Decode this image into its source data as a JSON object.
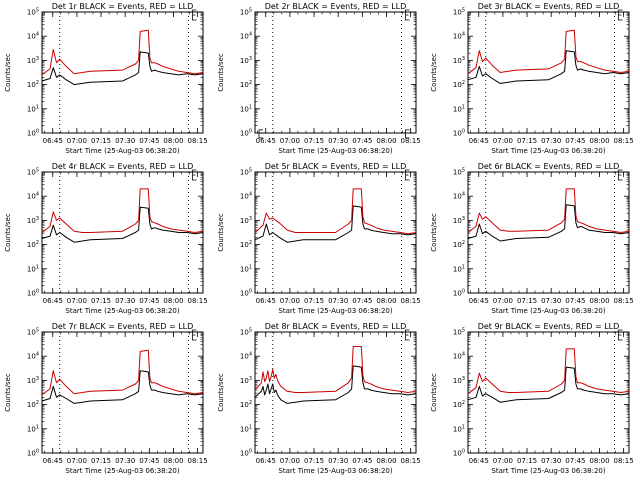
{
  "figure": {
    "start_time_label": "Start Time (25-Aug-03 06:38:20)",
    "y_axis_label": "Counts/sec"
  },
  "chart_data": {
    "type": "line",
    "x_tick_labels": [
      "06:45",
      "07:00",
      "07:15",
      "07:30",
      "07:45",
      "08:00",
      "08:15"
    ],
    "y_tick_labels": [
      "10^0",
      "10^1",
      "10^2",
      "10^3",
      "10^4",
      "10^5"
    ],
    "ylim_log10": [
      0,
      5
    ],
    "xlim_minutes": [
      0,
      100
    ],
    "vertical_marker_minutes": [
      11,
      91
    ],
    "marker_labels": [
      "E",
      "L"
    ],
    "panels": [
      {
        "title": "Det 1r BLACK = Events, RED = LLD",
        "series": [
          {
            "name": "Events",
            "color": "#000000",
            "x": [
              0,
              5,
              7,
              9,
              11,
              15,
              20,
              25,
              30,
              50,
              58,
              60,
              61,
              66,
              67,
              68,
              70,
              72,
              75,
              80,
              85,
              90,
              95,
              100
            ],
            "y": [
              2.15,
              2.25,
              2.7,
              2.3,
              2.4,
              2.2,
              2.0,
              2.05,
              2.1,
              2.15,
              2.4,
              2.5,
              3.35,
              3.3,
              2.75,
              2.55,
              2.6,
              2.55,
              2.5,
              2.45,
              2.4,
              2.45,
              2.4,
              2.45
            ]
          },
          {
            "name": "LLD",
            "color": "#cc0000",
            "x": [
              0,
              5,
              7,
              9,
              11,
              15,
              20,
              25,
              30,
              50,
              58,
              60,
              61,
              66,
              67,
              68,
              70,
              72,
              75,
              80,
              85,
              90,
              95,
              100
            ],
            "y": [
              2.4,
              2.65,
              3.45,
              2.9,
              3.05,
              2.75,
              2.45,
              2.5,
              2.55,
              2.6,
              2.85,
              3.0,
              4.2,
              4.25,
              3.1,
              2.9,
              2.9,
              2.85,
              2.75,
              2.65,
              2.55,
              2.5,
              2.45,
              2.5
            ]
          }
        ]
      },
      {
        "title": "Det 2r BLACK = Events, RED = LLD",
        "series": []
      },
      {
        "title": "Det 3r BLACK = Events, RED = LLD",
        "series": [
          {
            "name": "Events",
            "color": "#000000",
            "x": [
              0,
              5,
              7,
              9,
              11,
              15,
              20,
              25,
              30,
              50,
              58,
              60,
              61,
              66,
              67,
              68,
              70,
              72,
              75,
              80,
              85,
              90,
              95,
              100
            ],
            "y": [
              2.2,
              2.3,
              2.75,
              2.35,
              2.45,
              2.25,
              2.05,
              2.1,
              2.15,
              2.2,
              2.45,
              2.55,
              3.4,
              3.35,
              2.8,
              2.6,
              2.65,
              2.6,
              2.55,
              2.5,
              2.45,
              2.5,
              2.45,
              2.5
            ]
          },
          {
            "name": "LLD",
            "color": "#cc0000",
            "x": [
              0,
              5,
              7,
              9,
              11,
              15,
              20,
              25,
              30,
              50,
              58,
              60,
              61,
              66,
              67,
              68,
              70,
              72,
              75,
              80,
              85,
              90,
              95,
              100
            ],
            "y": [
              2.45,
              2.7,
              3.4,
              2.95,
              3.1,
              2.8,
              2.5,
              2.55,
              2.6,
              2.65,
              2.9,
              3.05,
              4.2,
              4.25,
              3.15,
              2.95,
              2.95,
              2.9,
              2.8,
              2.7,
              2.6,
              2.55,
              2.5,
              2.55
            ]
          }
        ]
      },
      {
        "title": "Det 4r BLACK = Events, RED = LLD",
        "series": [
          {
            "name": "Events",
            "color": "#000000",
            "x": [
              0,
              5,
              7,
              9,
              11,
              15,
              20,
              25,
              30,
              50,
              58,
              60,
              61,
              66,
              67,
              68,
              70,
              72,
              75,
              80,
              85,
              90,
              95,
              100
            ],
            "y": [
              2.25,
              2.35,
              2.8,
              2.4,
              2.5,
              2.3,
              2.1,
              2.15,
              2.2,
              2.25,
              2.5,
              2.6,
              3.55,
              3.5,
              2.85,
              2.65,
              2.7,
              2.65,
              2.6,
              2.55,
              2.5,
              2.5,
              2.45,
              2.5
            ]
          },
          {
            "name": "LLD",
            "color": "#cc0000",
            "x": [
              0,
              5,
              7,
              9,
              11,
              15,
              20,
              25,
              30,
              50,
              58,
              60,
              61,
              66,
              67,
              68,
              70,
              72,
              75,
              80,
              85,
              90,
              95,
              100
            ],
            "y": [
              2.5,
              2.75,
              3.35,
              3.0,
              3.1,
              2.85,
              2.55,
              2.5,
              2.5,
              2.55,
              2.85,
              3.0,
              4.3,
              4.3,
              3.15,
              2.95,
              2.9,
              2.85,
              2.75,
              2.65,
              2.6,
              2.55,
              2.5,
              2.55
            ]
          }
        ]
      },
      {
        "title": "Det 5r BLACK = Events, RED = LLD",
        "series": [
          {
            "name": "Events",
            "color": "#000000",
            "x": [
              0,
              5,
              7,
              9,
              11,
              15,
              20,
              25,
              30,
              50,
              58,
              60,
              61,
              66,
              67,
              68,
              70,
              72,
              75,
              80,
              85,
              90,
              95,
              100
            ],
            "y": [
              2.2,
              2.35,
              2.85,
              2.4,
              2.5,
              2.3,
              2.1,
              2.15,
              2.2,
              2.2,
              2.5,
              2.6,
              3.6,
              3.55,
              2.85,
              2.65,
              2.65,
              2.6,
              2.55,
              2.5,
              2.45,
              2.45,
              2.4,
              2.45
            ]
          },
          {
            "name": "LLD",
            "color": "#cc0000",
            "x": [
              0,
              5,
              7,
              9,
              11,
              15,
              20,
              25,
              30,
              50,
              58,
              60,
              61,
              66,
              67,
              68,
              70,
              72,
              75,
              80,
              85,
              90,
              95,
              100
            ],
            "y": [
              2.5,
              2.8,
              3.3,
              3.05,
              3.1,
              2.9,
              2.6,
              2.5,
              2.5,
              2.5,
              2.85,
              3.0,
              4.3,
              4.3,
              3.15,
              2.9,
              2.85,
              2.8,
              2.7,
              2.6,
              2.55,
              2.5,
              2.45,
              2.5
            ]
          }
        ]
      },
      {
        "title": "Det 6r BLACK = Events, RED = LLD",
        "series": [
          {
            "name": "Events",
            "color": "#000000",
            "x": [
              0,
              5,
              7,
              9,
              11,
              15,
              20,
              25,
              30,
              50,
              58,
              60,
              61,
              66,
              67,
              68,
              70,
              72,
              75,
              80,
              85,
              90,
              95,
              100
            ],
            "y": [
              2.25,
              2.35,
              2.85,
              2.45,
              2.55,
              2.35,
              2.15,
              2.2,
              2.25,
              2.3,
              2.55,
              2.65,
              3.65,
              3.6,
              2.9,
              2.7,
              2.75,
              2.7,
              2.6,
              2.55,
              2.5,
              2.5,
              2.45,
              2.5
            ]
          },
          {
            "name": "LLD",
            "color": "#cc0000",
            "x": [
              0,
              5,
              7,
              9,
              11,
              15,
              20,
              25,
              30,
              50,
              58,
              60,
              61,
              66,
              67,
              68,
              70,
              72,
              75,
              80,
              85,
              90,
              95,
              100
            ],
            "y": [
              2.5,
              2.75,
              3.3,
              3.05,
              3.15,
              2.9,
              2.6,
              2.55,
              2.55,
              2.6,
              2.9,
              3.05,
              4.3,
              4.3,
              3.2,
              2.95,
              2.9,
              2.85,
              2.75,
              2.65,
              2.6,
              2.55,
              2.5,
              2.55
            ]
          }
        ]
      },
      {
        "title": "Det 7r BLACK = Events, RED = LLD",
        "series": [
          {
            "name": "Events",
            "color": "#000000",
            "x": [
              0,
              5,
              7,
              9,
              11,
              15,
              20,
              25,
              30,
              50,
              58,
              60,
              61,
              66,
              67,
              68,
              70,
              72,
              75,
              80,
              85,
              90,
              95,
              100
            ],
            "y": [
              2.15,
              2.25,
              2.75,
              2.3,
              2.4,
              2.25,
              2.05,
              2.1,
              2.15,
              2.2,
              2.45,
              2.55,
              3.4,
              3.35,
              2.8,
              2.6,
              2.6,
              2.55,
              2.5,
              2.45,
              2.4,
              2.45,
              2.4,
              2.45
            ]
          },
          {
            "name": "LLD",
            "color": "#cc0000",
            "x": [
              0,
              5,
              7,
              9,
              11,
              15,
              20,
              25,
              30,
              50,
              58,
              60,
              61,
              66,
              67,
              68,
              70,
              72,
              75,
              80,
              85,
              90,
              95,
              100
            ],
            "y": [
              2.4,
              2.65,
              3.4,
              2.9,
              3.05,
              2.75,
              2.45,
              2.5,
              2.55,
              2.6,
              2.85,
              3.0,
              4.2,
              4.25,
              3.1,
              2.9,
              2.9,
              2.85,
              2.75,
              2.65,
              2.55,
              2.5,
              2.45,
              2.5
            ]
          }
        ]
      },
      {
        "title": "Det 8r BLACK = Events, RED = LLD",
        "series": [
          {
            "name": "Events",
            "color": "#000000",
            "x": [
              0,
              4,
              5,
              6,
              7,
              8,
              9,
              10,
              11,
              12,
              13,
              14,
              16,
              20,
              25,
              30,
              50,
              58,
              60,
              61,
              66,
              67,
              68,
              70,
              72,
              75,
              80,
              85,
              90,
              95,
              100
            ],
            "y": [
              2.3,
              2.55,
              2.75,
              2.4,
              2.6,
              2.85,
              2.45,
              2.65,
              2.85,
              2.5,
              2.6,
              2.4,
              2.2,
              2.05,
              2.1,
              2.15,
              2.2,
              2.5,
              2.65,
              3.6,
              3.55,
              2.9,
              2.65,
              2.65,
              2.6,
              2.55,
              2.5,
              2.45,
              2.45,
              2.4,
              2.45
            ]
          },
          {
            "name": "LLD",
            "color": "#cc0000",
            "x": [
              0,
              4,
              5,
              6,
              7,
              8,
              9,
              10,
              11,
              12,
              13,
              14,
              16,
              20,
              25,
              30,
              50,
              58,
              60,
              61,
              66,
              67,
              68,
              70,
              72,
              75,
              80,
              85,
              90,
              95,
              100
            ],
            "y": [
              2.6,
              2.9,
              3.35,
              2.95,
              3.1,
              3.4,
              2.95,
              3.15,
              3.45,
              3.1,
              3.25,
              3.0,
              2.75,
              2.55,
              2.5,
              2.5,
              2.55,
              2.9,
              3.1,
              4.4,
              4.4,
              3.2,
              2.95,
              2.9,
              2.85,
              2.75,
              2.65,
              2.6,
              2.55,
              2.5,
              2.55
            ]
          }
        ]
      },
      {
        "title": "Det 9r BLACK = Events, RED = LLD",
        "series": [
          {
            "name": "Events",
            "color": "#000000",
            "x": [
              0,
              5,
              7,
              9,
              11,
              15,
              20,
              25,
              30,
              50,
              58,
              60,
              61,
              66,
              67,
              68,
              70,
              72,
              75,
              80,
              85,
              90,
              95,
              100
            ],
            "y": [
              2.2,
              2.3,
              2.75,
              2.35,
              2.45,
              2.3,
              2.1,
              2.15,
              2.2,
              2.25,
              2.5,
              2.6,
              3.55,
              3.5,
              2.85,
              2.65,
              2.65,
              2.6,
              2.55,
              2.5,
              2.45,
              2.45,
              2.4,
              2.45
            ]
          },
          {
            "name": "LLD",
            "color": "#cc0000",
            "x": [
              0,
              5,
              7,
              9,
              11,
              15,
              20,
              25,
              30,
              50,
              58,
              60,
              61,
              66,
              67,
              68,
              70,
              72,
              75,
              80,
              85,
              90,
              95,
              100
            ],
            "y": [
              2.45,
              2.7,
              3.3,
              2.95,
              3.1,
              2.85,
              2.55,
              2.5,
              2.5,
              2.55,
              2.85,
              3.0,
              4.3,
              4.3,
              3.15,
              2.9,
              2.9,
              2.85,
              2.75,
              2.65,
              2.6,
              2.55,
              2.5,
              2.55
            ]
          }
        ]
      }
    ]
  }
}
